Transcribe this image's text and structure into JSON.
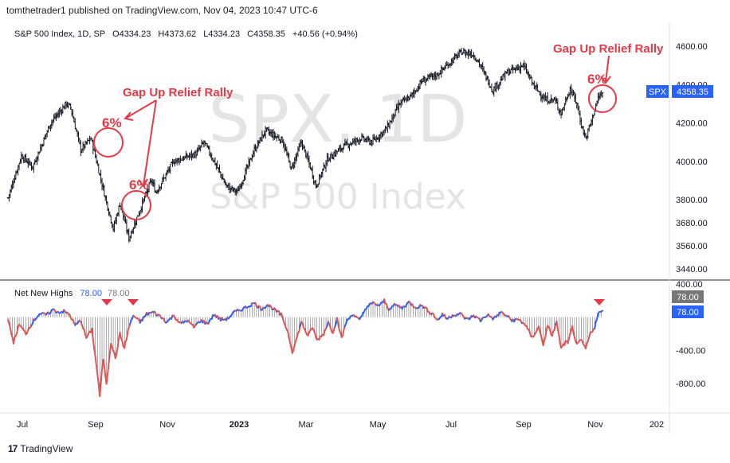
{
  "header": {
    "published": "tomthetrader1 published on TradingView.com, Nov 04, 2023 10:47 UTC-6"
  },
  "footer": {
    "brand": "TradingView",
    "logo_mark": "17"
  },
  "legend": {
    "symbol": "S&P 500 Index, 1D, SP",
    "open": "O4334.23",
    "high": "H4373.62",
    "low": "L4334.23",
    "close": "C4358.35",
    "change": "+40.56 (+0.94%)"
  },
  "watermark": {
    "big": "SPX, 1D",
    "sub": "S&P 500 Index"
  },
  "price_badge": {
    "symbol": "SPX",
    "value": "4358.35"
  },
  "colors": {
    "up": "#2962ff",
    "down": "#e05555",
    "annotation": "#e63946",
    "text": "#131722",
    "axis": "#444",
    "divider": "#222",
    "badge_blue": "#2962ff",
    "badge_gray": "#777"
  },
  "annotations": {
    "label1": "Gap Up Relief Rally",
    "label2": "Gap Up Relief Rally",
    "pct1": "6%",
    "pct2": "6%",
    "pct3": "6%"
  },
  "indicator": {
    "name": "Net New Highs",
    "value_blue": "78.00",
    "value_gray": "78.00",
    "badge_gray": "78.00",
    "badge_blue": "78.00"
  },
  "chart_data": [
    {
      "type": "ohlc",
      "title": "S&P 500 Index, 1D, SP",
      "ylim": [
        3380,
        4700
      ],
      "yticks": [
        "4600.00",
        "4400.00",
        "4200.00",
        "4000.00",
        "3800.00",
        "3680.00",
        "3560.00",
        "3440.00"
      ],
      "xticks": [
        "Jul",
        "Sep",
        "Nov",
        "2023",
        "Mar",
        "May",
        "Jul",
        "Sep",
        "Nov",
        "202"
      ],
      "anchors": [
        [
          0,
          3810
        ],
        [
          12,
          4030
        ],
        [
          22,
          3970
        ],
        [
          38,
          4200
        ],
        [
          52,
          4300
        ],
        [
          56,
          4280
        ],
        [
          65,
          4060
        ],
        [
          74,
          4120
        ],
        [
          87,
          3810
        ],
        [
          94,
          3650
        ],
        [
          100,
          3780
        ],
        [
          108,
          3600
        ],
        [
          116,
          3720
        ],
        [
          128,
          3900
        ],
        [
          132,
          3840
        ],
        [
          148,
          4000
        ],
        [
          168,
          4040
        ],
        [
          175,
          4100
        ],
        [
          185,
          3990
        ],
        [
          195,
          3870
        ],
        [
          205,
          3840
        ],
        [
          220,
          4060
        ],
        [
          230,
          4160
        ],
        [
          245,
          4110
        ],
        [
          253,
          3960
        ],
        [
          262,
          4100
        ],
        [
          270,
          3970
        ],
        [
          275,
          3870
        ],
        [
          285,
          4010
        ],
        [
          300,
          4080
        ],
        [
          315,
          4120
        ],
        [
          325,
          4100
        ],
        [
          338,
          4170
        ],
        [
          350,
          4300
        ],
        [
          360,
          4340
        ],
        [
          370,
          4420
        ],
        [
          383,
          4450
        ],
        [
          392,
          4500
        ],
        [
          405,
          4570
        ],
        [
          415,
          4560
        ],
        [
          420,
          4520
        ],
        [
          433,
          4370
        ],
        [
          445,
          4460
        ],
        [
          460,
          4500
        ],
        [
          470,
          4390
        ],
        [
          480,
          4320
        ],
        [
          488,
          4320
        ],
        [
          494,
          4250
        ],
        [
          502,
          4380
        ],
        [
          508,
          4300
        ],
        [
          512,
          4190
        ],
        [
          516,
          4120
        ],
        [
          522,
          4230
        ],
        [
          527,
          4330
        ],
        [
          531,
          4358
        ]
      ],
      "last": {
        "open": 4334.23,
        "high": 4373.62,
        "low": 4334.23,
        "close": 4358.35
      }
    },
    {
      "type": "area",
      "title": "Net New Highs",
      "ylim": [
        -1050,
        420
      ],
      "yticks": [
        "400.00",
        "-400.00",
        "-800.00"
      ],
      "anchors": [
        [
          0,
          -40
        ],
        [
          5,
          -300
        ],
        [
          10,
          -90
        ],
        [
          16,
          -200
        ],
        [
          22,
          -60
        ],
        [
          28,
          40
        ],
        [
          35,
          30
        ],
        [
          40,
          90
        ],
        [
          45,
          60
        ],
        [
          50,
          70
        ],
        [
          55,
          30
        ],
        [
          60,
          -100
        ],
        [
          65,
          -40
        ],
        [
          70,
          -250
        ],
        [
          75,
          -150
        ],
        [
          80,
          -700
        ],
        [
          82,
          -950
        ],
        [
          85,
          -500
        ],
        [
          88,
          -800
        ],
        [
          92,
          -300
        ],
        [
          96,
          -500
        ],
        [
          100,
          -200
        ],
        [
          104,
          -380
        ],
        [
          108,
          -120
        ],
        [
          112,
          20
        ],
        [
          118,
          -60
        ],
        [
          124,
          40
        ],
        [
          130,
          60
        ],
        [
          136,
          10
        ],
        [
          142,
          -60
        ],
        [
          148,
          20
        ],
        [
          154,
          -80
        ],
        [
          160,
          -40
        ],
        [
          166,
          -120
        ],
        [
          172,
          -40
        ],
        [
          178,
          -80
        ],
        [
          184,
          30
        ],
        [
          190,
          -30
        ],
        [
          196,
          -20
        ],
        [
          202,
          60
        ],
        [
          208,
          90
        ],
        [
          214,
          130
        ],
        [
          220,
          170
        ],
        [
          226,
          100
        ],
        [
          232,
          150
        ],
        [
          238,
          90
        ],
        [
          244,
          30
        ],
        [
          250,
          -180
        ],
        [
          254,
          -420
        ],
        [
          258,
          -250
        ],
        [
          262,
          -60
        ],
        [
          268,
          -230
        ],
        [
          272,
          -120
        ],
        [
          276,
          -280
        ],
        [
          282,
          -200
        ],
        [
          286,
          -60
        ],
        [
          290,
          -180
        ],
        [
          294,
          -20
        ],
        [
          298,
          -260
        ],
        [
          302,
          -60
        ],
        [
          308,
          40
        ],
        [
          314,
          -40
        ],
        [
          320,
          120
        ],
        [
          326,
          170
        ],
        [
          332,
          140
        ],
        [
          336,
          200
        ],
        [
          340,
          100
        ],
        [
          346,
          150
        ],
        [
          352,
          110
        ],
        [
          358,
          180
        ],
        [
          364,
          120
        ],
        [
          370,
          140
        ],
        [
          376,
          70
        ],
        [
          380,
          30
        ],
        [
          384,
          -40
        ],
        [
          388,
          40
        ],
        [
          392,
          -20
        ],
        [
          398,
          30
        ],
        [
          404,
          40
        ],
        [
          410,
          -30
        ],
        [
          416,
          20
        ],
        [
          422,
          -40
        ],
        [
          428,
          30
        ],
        [
          434,
          -20
        ],
        [
          440,
          60
        ],
        [
          446,
          10
        ],
        [
          450,
          -40
        ],
        [
          456,
          -30
        ],
        [
          462,
          -90
        ],
        [
          468,
          -250
        ],
        [
          474,
          -120
        ],
        [
          478,
          -330
        ],
        [
          482,
          -110
        ],
        [
          486,
          -220
        ],
        [
          490,
          -60
        ],
        [
          494,
          -380
        ],
        [
          498,
          -300
        ],
        [
          500,
          -320
        ],
        [
          504,
          -120
        ],
        [
          508,
          -340
        ],
        [
          512,
          -280
        ],
        [
          516,
          -380
        ],
        [
          520,
          -200
        ],
        [
          524,
          -120
        ],
        [
          527,
          40
        ],
        [
          531,
          78
        ]
      ],
      "last_value": 78.0
    }
  ]
}
